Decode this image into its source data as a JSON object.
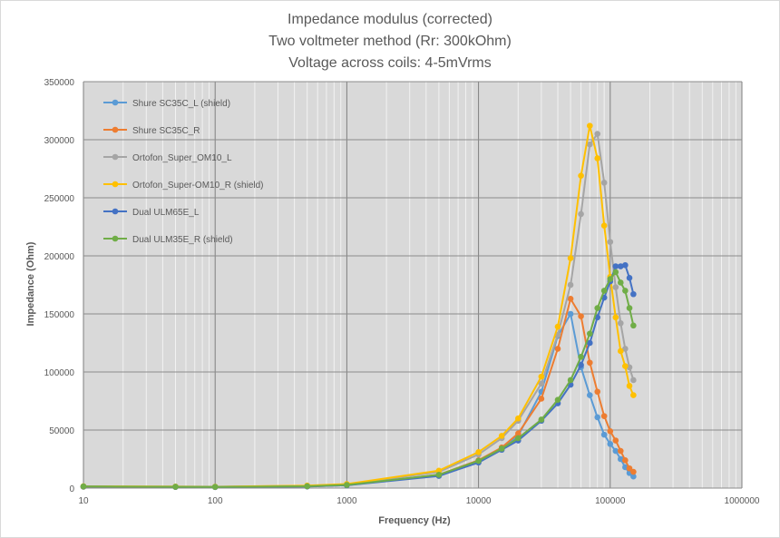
{
  "chart_data": {
    "type": "scatter",
    "title": [
      "Impedance modulus (corrected)",
      "Two voltmeter method (Rr: 300kOhm)",
      "Voltage across coils: 4-5mVrms"
    ],
    "xlabel": "Frequency (Hz)",
    "ylabel": "Impedance (Ohm)",
    "x_scale": "log",
    "xlim": [
      10,
      1000000
    ],
    "ylim": [
      0,
      350000
    ],
    "x_ticks": [
      "10",
      "100",
      "1000",
      "10000",
      "100000",
      "1000000"
    ],
    "y_ticks": [
      "0",
      "50000",
      "100000",
      "150000",
      "200000",
      "250000",
      "300000",
      "350000"
    ],
    "grid": true,
    "legend_position": "top-left",
    "background": "#d9d9d9",
    "series": [
      {
        "name": "Shure SC35C_L (shield)",
        "color": "#5b9bd5",
        "points": [
          [
            10,
            1200
          ],
          [
            50,
            1000
          ],
          [
            100,
            900
          ],
          [
            500,
            1500
          ],
          [
            1000,
            2500
          ],
          [
            5000,
            11000
          ],
          [
            10000,
            23000
          ],
          [
            15000,
            34000
          ],
          [
            20000,
            45000
          ],
          [
            30000,
            83000
          ],
          [
            40000,
            131000
          ],
          [
            50000,
            150000
          ],
          [
            60000,
            104000
          ],
          [
            70000,
            80000
          ],
          [
            80000,
            61000
          ],
          [
            90000,
            46000
          ],
          [
            100000,
            38000
          ],
          [
            110000,
            32000
          ],
          [
            120000,
            25000
          ],
          [
            130000,
            18000
          ],
          [
            140000,
            13000
          ],
          [
            150000,
            10000
          ]
        ]
      },
      {
        "name": "Shure SC35C_R",
        "color": "#ed7d31",
        "points": [
          [
            10,
            1200
          ],
          [
            50,
            1000
          ],
          [
            100,
            900
          ],
          [
            500,
            1500
          ],
          [
            1000,
            2600
          ],
          [
            5000,
            11500
          ],
          [
            10000,
            24000
          ],
          [
            15000,
            35000
          ],
          [
            20000,
            47000
          ],
          [
            30000,
            77000
          ],
          [
            40000,
            120000
          ],
          [
            50000,
            163000
          ],
          [
            60000,
            148000
          ],
          [
            70000,
            108000
          ],
          [
            80000,
            83000
          ],
          [
            90000,
            62000
          ],
          [
            100000,
            49000
          ],
          [
            110000,
            41000
          ],
          [
            120000,
            32000
          ],
          [
            130000,
            24000
          ],
          [
            140000,
            17000
          ],
          [
            150000,
            14000
          ]
        ]
      },
      {
        "name": "Ortofon_Super_OM10_L",
        "color": "#a5a5a5",
        "points": [
          [
            10,
            1500
          ],
          [
            50,
            1200
          ],
          [
            100,
            1100
          ],
          [
            500,
            2000
          ],
          [
            1000,
            3200
          ],
          [
            5000,
            14000
          ],
          [
            10000,
            29000
          ],
          [
            15000,
            43000
          ],
          [
            20000,
            58000
          ],
          [
            30000,
            90000
          ],
          [
            40000,
            132000
          ],
          [
            50000,
            175000
          ],
          [
            60000,
            236000
          ],
          [
            70000,
            296000
          ],
          [
            80000,
            305000
          ],
          [
            90000,
            263000
          ],
          [
            100000,
            212000
          ],
          [
            110000,
            173000
          ],
          [
            120000,
            142000
          ],
          [
            130000,
            120000
          ],
          [
            140000,
            104000
          ],
          [
            150000,
            93000
          ]
        ]
      },
      {
        "name": "Ortofon_Super-OM10_R (shield)",
        "color": "#ffc000",
        "points": [
          [
            10,
            1600
          ],
          [
            50,
            1300
          ],
          [
            100,
            1200
          ],
          [
            500,
            2200
          ],
          [
            1000,
            3500
          ],
          [
            5000,
            15000
          ],
          [
            10000,
            31000
          ],
          [
            15000,
            45000
          ],
          [
            20000,
            60000
          ],
          [
            30000,
            96000
          ],
          [
            40000,
            139000
          ],
          [
            50000,
            198000
          ],
          [
            60000,
            269000
          ],
          [
            70000,
            312000
          ],
          [
            80000,
            284000
          ],
          [
            90000,
            226000
          ],
          [
            100000,
            182000
          ],
          [
            110000,
            147000
          ],
          [
            120000,
            118000
          ],
          [
            130000,
            105000
          ],
          [
            140000,
            88000
          ],
          [
            150000,
            80000
          ]
        ]
      },
      {
        "name": "Dual ULM65E_L",
        "color": "#4472c4",
        "points": [
          [
            10,
            1300
          ],
          [
            50,
            1000
          ],
          [
            100,
            900
          ],
          [
            500,
            1400
          ],
          [
            1000,
            2400
          ],
          [
            5000,
            10500
          ],
          [
            10000,
            22000
          ],
          [
            15000,
            33000
          ],
          [
            20000,
            41000
          ],
          [
            30000,
            58000
          ],
          [
            40000,
            73000
          ],
          [
            50000,
            89000
          ],
          [
            60000,
            106000
          ],
          [
            70000,
            125000
          ],
          [
            80000,
            147000
          ],
          [
            90000,
            164000
          ],
          [
            100000,
            178000
          ],
          [
            110000,
            191000
          ],
          [
            120000,
            191000
          ],
          [
            130000,
            192000
          ],
          [
            140000,
            181000
          ],
          [
            150000,
            167000
          ]
        ]
      },
      {
        "name": "Dual ULM35E_R (shield)",
        "color": "#70ad47",
        "points": [
          [
            10,
            1400
          ],
          [
            50,
            1100
          ],
          [
            100,
            1000
          ],
          [
            500,
            1600
          ],
          [
            1000,
            2700
          ],
          [
            5000,
            11500
          ],
          [
            10000,
            23500
          ],
          [
            15000,
            34000
          ],
          [
            20000,
            43000
          ],
          [
            30000,
            59000
          ],
          [
            40000,
            76000
          ],
          [
            50000,
            93000
          ],
          [
            60000,
            113000
          ],
          [
            70000,
            133000
          ],
          [
            80000,
            155000
          ],
          [
            90000,
            170000
          ],
          [
            100000,
            180000
          ],
          [
            110000,
            186000
          ],
          [
            120000,
            177000
          ],
          [
            130000,
            170000
          ],
          [
            140000,
            155000
          ],
          [
            150000,
            140000
          ]
        ]
      }
    ]
  }
}
